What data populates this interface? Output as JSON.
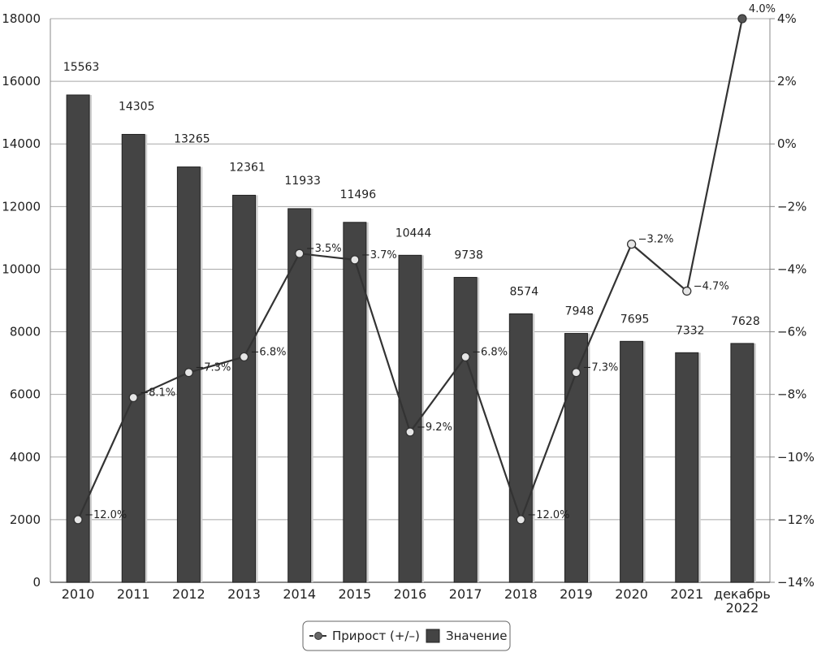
{
  "chart_data": {
    "type": "bar",
    "categories": [
      "2010",
      "2011",
      "2012",
      "2013",
      "2014",
      "2015",
      "2016",
      "2017",
      "2018",
      "2019",
      "2020",
      "2021",
      "декабрь 2022"
    ],
    "ylim": [
      0,
      18000
    ],
    "y_ticks": [
      "0",
      "2000",
      "4000",
      "6000",
      "8000",
      "10000",
      "12000",
      "14000",
      "16000",
      "18000"
    ],
    "y2lim": [
      -14,
      4
    ],
    "y2_ticks": [
      "−14%",
      "−12%",
      "−10%",
      "−8%",
      "−6%",
      "−4%",
      "−2%",
      "0%",
      "2%",
      "4%"
    ],
    "grid": true,
    "legend_position": "bottom",
    "series": [
      {
        "name": "Значение",
        "type": "bar",
        "axis": "left",
        "color": "#444444",
        "values": [
          15563,
          14305,
          13265,
          12361,
          11933,
          11496,
          10444,
          9738,
          8574,
          7948,
          7695,
          7332,
          7628
        ],
        "labels": [
          "15563",
          "14305",
          "13265",
          "12361",
          "11933",
          "11496",
          "10444",
          "9738",
          "8574",
          "7948",
          "7695",
          "7332",
          "7628"
        ]
      },
      {
        "name": "Прирост (+/–)",
        "type": "line",
        "axis": "right",
        "color": "#333333",
        "values": [
          -12.0,
          -8.1,
          -7.3,
          -6.8,
          -3.5,
          -3.7,
          -9.2,
          -6.8,
          -12.0,
          -7.3,
          -3.2,
          -4.7,
          4.0
        ],
        "labels": [
          "−12.0%",
          "−8.1%",
          "−7.3%",
          "−6.8%",
          "−3.5%",
          "−3.7%",
          "−9.2%",
          "−6.8%",
          "−12.0%",
          "−7.3%",
          "−3.2%",
          "−4.7%",
          "4.0%"
        ]
      }
    ]
  }
}
